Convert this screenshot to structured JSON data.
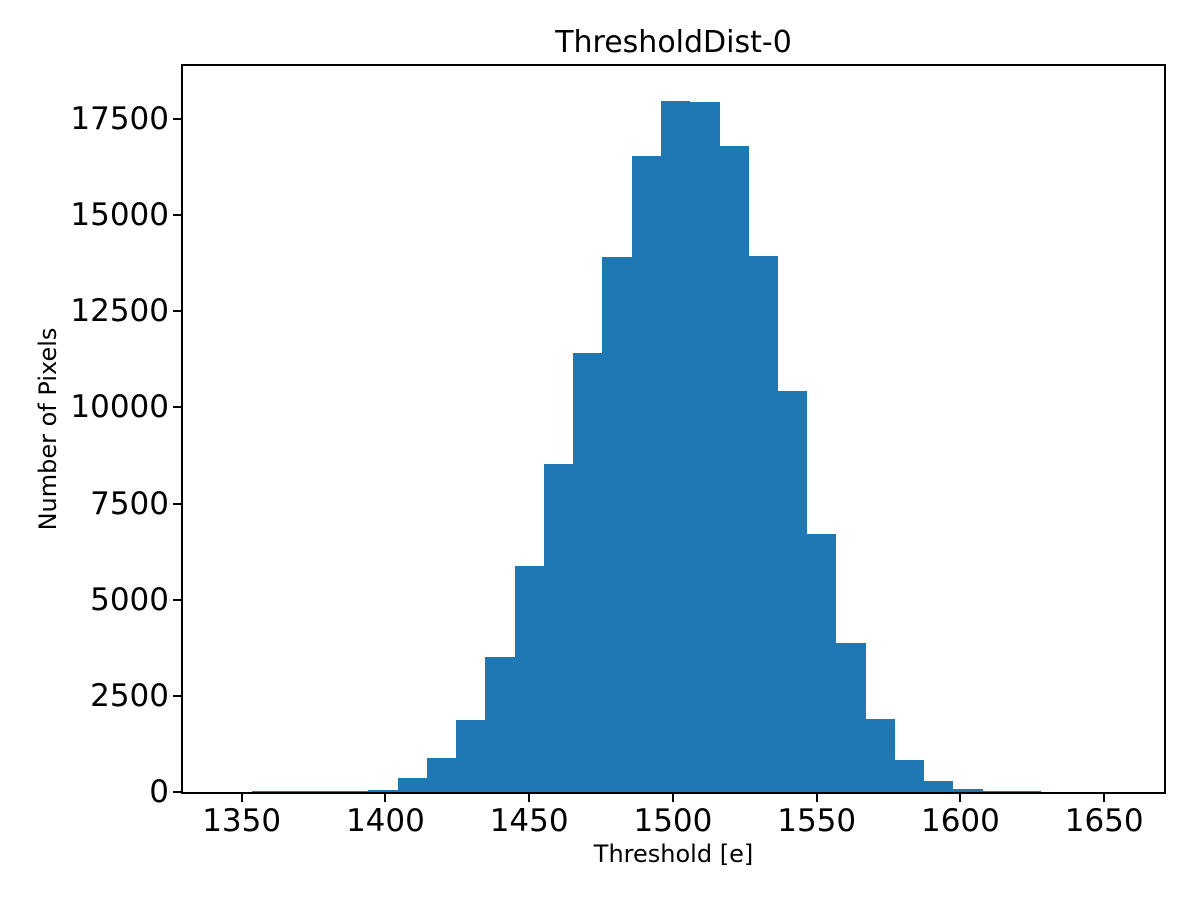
{
  "figure": {
    "background": "#ffffff",
    "text_color": "#000000"
  },
  "chart_data": {
    "type": "bar",
    "subtype": "histogram",
    "title": "ThresholdDist-0",
    "xlabel": "Threshold [e]",
    "ylabel": "Number of Pixels",
    "bar_color": "#1f77b4",
    "axis_color": "#000000",
    "grid": false,
    "legend": false,
    "xlim": [
      1329.6,
      1670.8
    ],
    "ylim": [
      0,
      18880
    ],
    "x_ticks": [
      1350,
      1400,
      1450,
      1500,
      1550,
      1600,
      1650
    ],
    "y_ticks": [
      0,
      2500,
      5000,
      7500,
      10000,
      12500,
      15000,
      17500
    ],
    "bin_edges": [
      1343.3,
      1353.5,
      1363.6,
      1373.8,
      1384.0,
      1394.1,
      1404.3,
      1414.5,
      1424.6,
      1434.8,
      1445.0,
      1455.1,
      1465.3,
      1475.4,
      1485.6,
      1495.8,
      1505.9,
      1516.1,
      1526.3,
      1536.4,
      1546.6,
      1556.7,
      1566.9,
      1577.1,
      1587.2,
      1597.4,
      1607.6,
      1617.7,
      1627.9,
      1638.0
    ],
    "counts": [
      10,
      15,
      20,
      25,
      35,
      60,
      370,
      875,
      1870,
      3510,
      5865,
      8540,
      11410,
      13915,
      16540,
      17975,
      17955,
      16800,
      13950,
      10430,
      6700,
      3880,
      1890,
      830,
      280,
      78,
      30,
      20,
      12
    ]
  }
}
